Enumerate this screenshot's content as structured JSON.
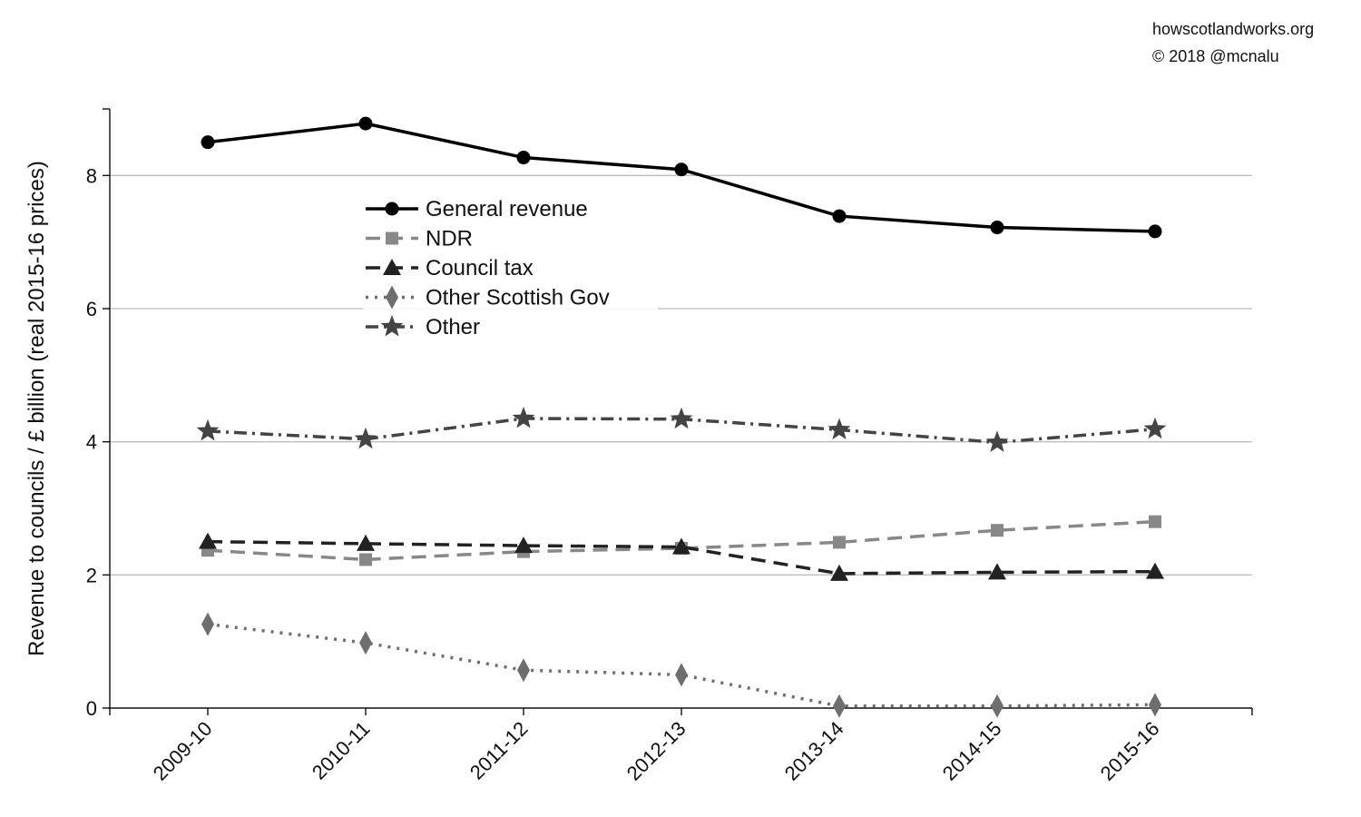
{
  "credits": {
    "site": "howscotlandworks.org",
    "copyright": "© 2018  @mcnalu"
  },
  "chart_data": {
    "type": "line",
    "title": "",
    "xlabel": "",
    "ylabel": "Revenue to councils / £ billion (real 2015-16 prices)",
    "categories": [
      "2009-10",
      "2010-11",
      "2011-12",
      "2012-13",
      "2013-14",
      "2014-15",
      "2015-16"
    ],
    "ylim": [
      0,
      9
    ],
    "yticks": [
      0,
      2,
      4,
      6,
      8
    ],
    "grid": "horizontal",
    "legend_position": "upper-left-inside",
    "series": [
      {
        "name": "General revenue",
        "values": [
          8.5,
          8.78,
          8.27,
          8.09,
          7.39,
          7.22,
          7.16
        ],
        "color": "#000000",
        "dash": "solid",
        "marker": "circle"
      },
      {
        "name": "NDR",
        "values": [
          2.37,
          2.23,
          2.35,
          2.4,
          2.49,
          2.67,
          2.8
        ],
        "color": "#888888",
        "dash": "dashed",
        "marker": "square"
      },
      {
        "name": "Council tax",
        "values": [
          2.5,
          2.47,
          2.44,
          2.42,
          2.02,
          2.04,
          2.05
        ],
        "color": "#222222",
        "dash": "dashed",
        "marker": "triangle"
      },
      {
        "name": "Other Scottish Gov",
        "values": [
          1.26,
          0.98,
          0.57,
          0.5,
          0.03,
          0.03,
          0.05
        ],
        "color": "#6e6e6e",
        "dash": "dotted",
        "marker": "diamond"
      },
      {
        "name": "Other",
        "values": [
          4.16,
          4.04,
          4.35,
          4.34,
          4.18,
          3.99,
          4.19
        ],
        "color": "#444444",
        "dash": "dashdot",
        "marker": "star"
      }
    ]
  }
}
